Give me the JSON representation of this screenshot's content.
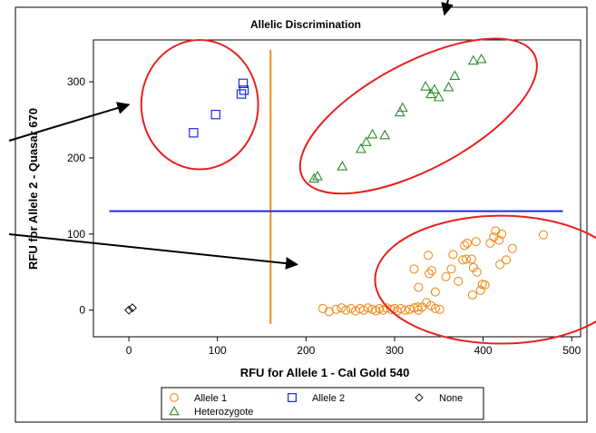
{
  "chart_data": {
    "type": "scatter",
    "title": "Allelic Discrimination",
    "xlabel": "RFU for Allele 1 - Cal Gold 540",
    "ylabel": "RFU for Allele 2 - Quasar 670",
    "xlim": [
      -40,
      510
    ],
    "ylim": [
      -35,
      355
    ],
    "xticks": [
      "0",
      "100",
      "200",
      "300",
      "400",
      "500"
    ],
    "yticks": [
      "0",
      "100",
      "200",
      "300"
    ],
    "grid": false,
    "legend_position": "bottom",
    "series": [
      {
        "name": "Allele 1",
        "marker": "circle",
        "color": "#f08c1e",
        "x": [
          219,
          226,
          234,
          240,
          245,
          251,
          256,
          261,
          265,
          270,
          275,
          279,
          283,
          287,
          291,
          296,
          300,
          303,
          307,
          312,
          317,
          322,
          327,
          331,
          336,
          341,
          346,
          351,
          322,
          327,
          326,
          339,
          342,
          338,
          346,
          358,
          364,
          366,
          372,
          377,
          379,
          382,
          387,
          389,
          392,
          397,
          399,
          402,
          408,
          412,
          414,
          418,
          419,
          421,
          426,
          433,
          468,
          381,
          388,
          393
        ],
        "y": [
          2,
          -2,
          1,
          3,
          0,
          2,
          -1,
          2,
          0,
          3,
          1,
          -1,
          2,
          0,
          3,
          1,
          2,
          -1,
          2,
          0,
          1,
          3,
          0,
          4,
          10,
          6,
          2,
          1,
          54,
          30,
          4,
          48,
          52,
          72,
          24,
          44,
          54,
          73,
          38,
          66,
          85,
          88,
          67,
          56,
          90,
          26,
          34,
          33,
          88,
          96,
          104,
          92,
          60,
          100,
          66,
          81,
          99,
          67,
          20,
          50
        ]
      },
      {
        "name": "Allele 2",
        "marker": "square",
        "color": "#1c2dd6",
        "x": [
          73,
          98,
          127,
          129,
          130
        ],
        "y": [
          233,
          257,
          284,
          298,
          289
        ]
      },
      {
        "name": "None",
        "marker": "diamond",
        "color": "#222222",
        "x": [
          0,
          4
        ],
        "y": [
          0,
          3
        ]
      },
      {
        "name": "Heterozygote",
        "marker": "triangle",
        "color": "#2f8a2f",
        "x": [
          209,
          213,
          241,
          262,
          268,
          275,
          289,
          306,
          309,
          335,
          341,
          345,
          350,
          361,
          368,
          389,
          398
        ],
        "y": [
          173,
          176,
          189,
          212,
          221,
          231,
          230,
          260,
          266,
          294,
          284,
          290,
          280,
          293,
          308,
          328,
          330
        ]
      }
    ],
    "reference_lines": {
      "vertical": {
        "x": 160,
        "y_range": [
          -18,
          342
        ],
        "color": "#f08c1e"
      },
      "horizontal": {
        "y": 130,
        "x_range": [
          -22,
          490
        ],
        "color": "#1c2dd6"
      }
    },
    "annotations": {
      "ellipses": [
        {
          "center": [
            80,
            270
          ],
          "radius": [
            66,
            85
          ],
          "rotation": 0,
          "color": "#e8201e"
        },
        {
          "center": [
            327,
            255
          ],
          "radius": [
            148,
            70
          ],
          "rotation": -28,
          "color": "#e8201e"
        },
        {
          "center": [
            420,
            40
          ],
          "radius": [
            142,
            84
          ],
          "rotation": 0,
          "color": "#e8201e"
        }
      ],
      "arrows_to": [
        [
          0,
          270
        ],
        [
          190,
          60
        ]
      ],
      "arrow_into_title_from": "top"
    }
  }
}
